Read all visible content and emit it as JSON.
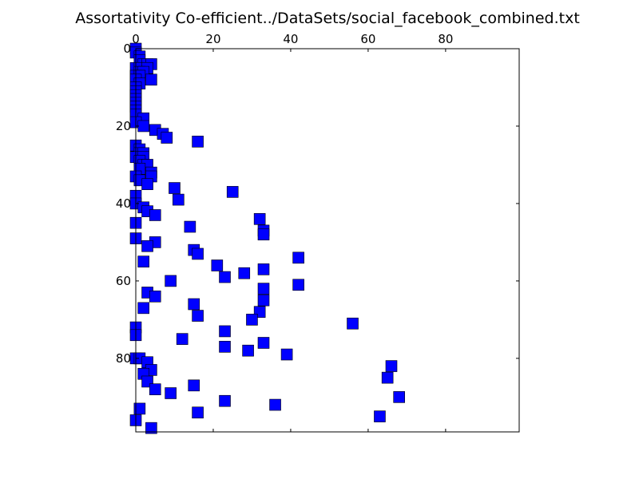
{
  "chart_data": {
    "type": "scatter",
    "title": "Assortativity Co-efficient../DataSets/social_facebook_combined.txt",
    "xlabel": "",
    "ylabel": "",
    "xlim": [
      0,
      99
    ],
    "ylim": [
      0,
      99
    ],
    "y_inverted": true,
    "x_axis_position": "top",
    "x_ticks": [
      0,
      20,
      40,
      60,
      80
    ],
    "y_ticks": [
      0,
      20,
      40,
      60,
      80
    ],
    "grid": false,
    "legend": "none",
    "marker": "square",
    "marker_color": "#0000ff",
    "marker_edge_color": "#000000",
    "series": [
      {
        "points": [
          [
            0,
            0
          ],
          [
            0,
            1
          ],
          [
            1,
            2
          ],
          [
            1,
            3
          ],
          [
            2,
            4
          ],
          [
            3,
            4
          ],
          [
            4,
            4
          ],
          [
            0,
            5
          ],
          [
            1,
            5
          ],
          [
            3,
            5
          ],
          [
            1,
            6
          ],
          [
            2,
            6
          ],
          [
            0,
            7
          ],
          [
            1,
            7
          ],
          [
            0,
            8
          ],
          [
            4,
            8
          ],
          [
            1,
            9
          ],
          [
            0,
            10
          ],
          [
            0,
            11
          ],
          [
            0,
            12
          ],
          [
            0,
            13
          ],
          [
            0,
            14
          ],
          [
            0,
            15
          ],
          [
            0,
            16
          ],
          [
            0,
            17
          ],
          [
            2,
            18
          ],
          [
            0,
            19
          ],
          [
            2,
            20
          ],
          [
            5,
            21
          ],
          [
            7,
            22
          ],
          [
            8,
            23
          ],
          [
            16,
            24
          ],
          [
            0,
            25
          ],
          [
            1,
            26
          ],
          [
            1,
            27
          ],
          [
            2,
            27
          ],
          [
            0,
            28
          ],
          [
            2,
            28
          ],
          [
            1,
            29
          ],
          [
            2,
            30
          ],
          [
            3,
            30
          ],
          [
            1,
            31
          ],
          [
            4,
            32
          ],
          [
            0,
            33
          ],
          [
            4,
            33
          ],
          [
            1,
            34
          ],
          [
            3,
            35
          ],
          [
            10,
            36
          ],
          [
            25,
            37
          ],
          [
            0,
            38
          ],
          [
            11,
            39
          ],
          [
            0,
            40
          ],
          [
            2,
            41
          ],
          [
            3,
            42
          ],
          [
            5,
            43
          ],
          [
            32,
            44
          ],
          [
            0,
            45
          ],
          [
            14,
            46
          ],
          [
            33,
            47
          ],
          [
            33,
            48
          ],
          [
            0,
            49
          ],
          [
            5,
            50
          ],
          [
            3,
            51
          ],
          [
            15,
            52
          ],
          [
            16,
            53
          ],
          [
            42,
            54
          ],
          [
            2,
            55
          ],
          [
            21,
            56
          ],
          [
            33,
            57
          ],
          [
            28,
            58
          ],
          [
            23,
            59
          ],
          [
            9,
            60
          ],
          [
            42,
            61
          ],
          [
            33,
            62
          ],
          [
            3,
            63
          ],
          [
            5,
            64
          ],
          [
            33,
            65
          ],
          [
            15,
            66
          ],
          [
            2,
            67
          ],
          [
            32,
            68
          ],
          [
            16,
            69
          ],
          [
            30,
            70
          ],
          [
            56,
            71
          ],
          [
            0,
            72
          ],
          [
            23,
            73
          ],
          [
            0,
            74
          ],
          [
            12,
            75
          ],
          [
            33,
            76
          ],
          [
            23,
            77
          ],
          [
            29,
            78
          ],
          [
            39,
            79
          ],
          [
            0,
            80
          ],
          [
            1,
            80
          ],
          [
            3,
            81
          ],
          [
            66,
            82
          ],
          [
            4,
            83
          ],
          [
            2,
            84
          ],
          [
            65,
            85
          ],
          [
            3,
            86
          ],
          [
            15,
            87
          ],
          [
            5,
            88
          ],
          [
            9,
            89
          ],
          [
            68,
            90
          ],
          [
            23,
            91
          ],
          [
            36,
            92
          ],
          [
            1,
            93
          ],
          [
            16,
            94
          ],
          [
            63,
            95
          ],
          [
            0,
            96
          ],
          [
            4,
            98
          ]
        ]
      }
    ]
  }
}
